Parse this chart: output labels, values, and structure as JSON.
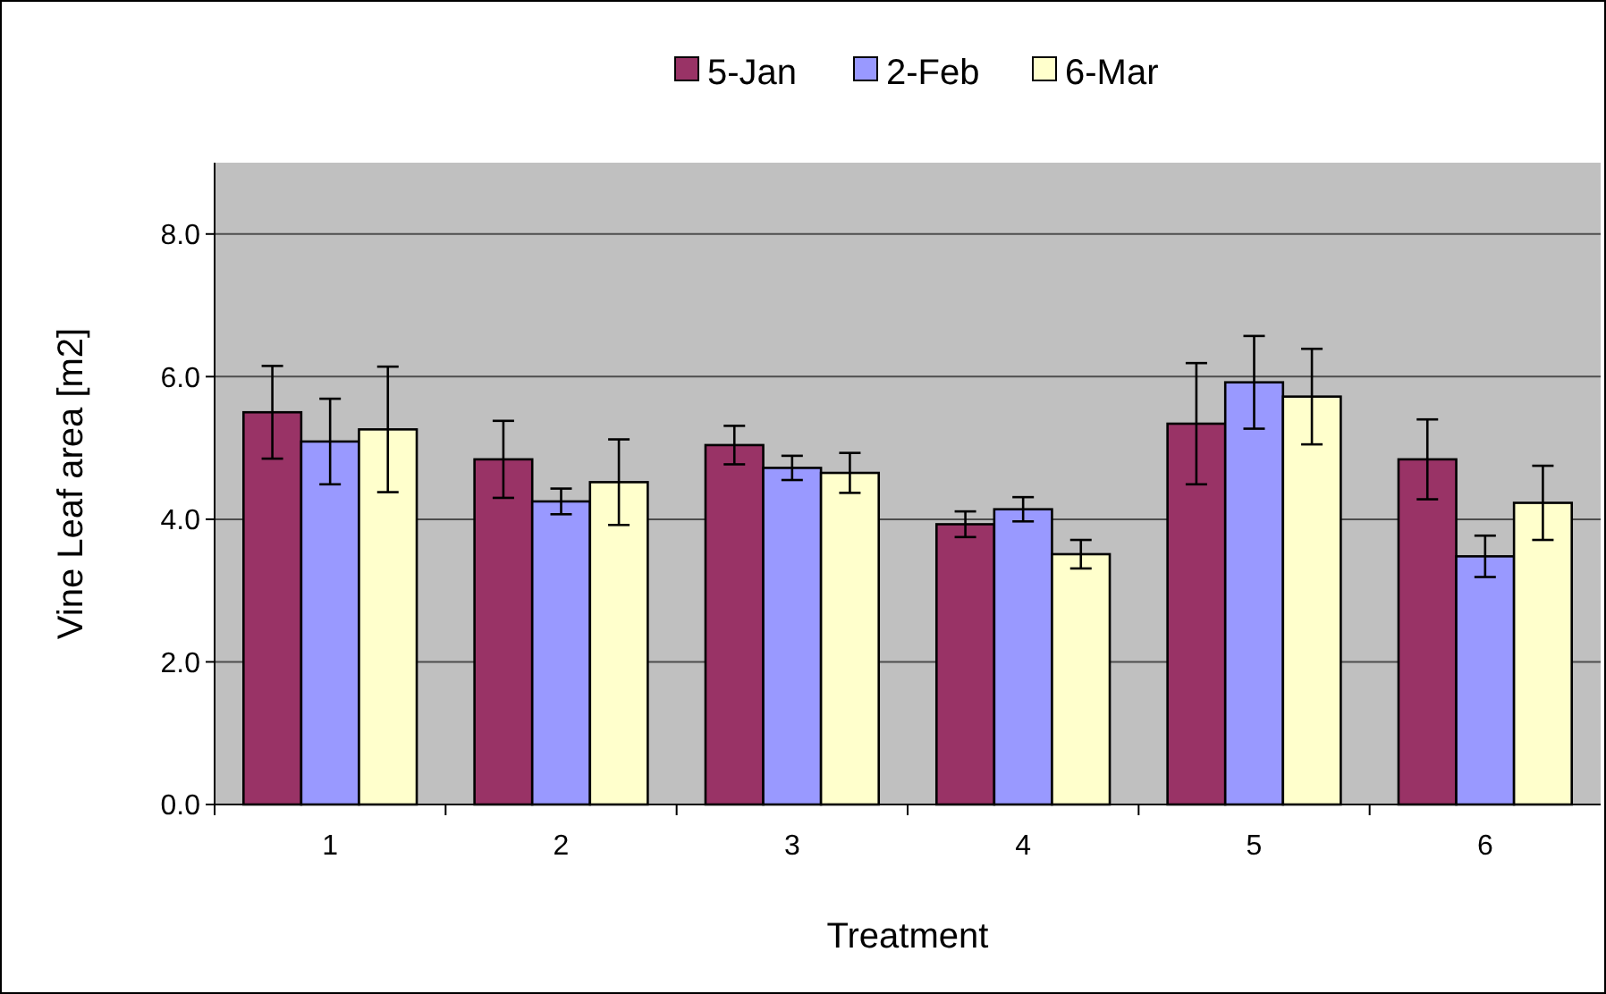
{
  "chart_data": {
    "type": "bar",
    "xlabel": "Treatment",
    "ylabel": "Vine Leaf area [m2]",
    "categories": [
      "1",
      "2",
      "3",
      "4",
      "5",
      "6"
    ],
    "series": [
      {
        "name": "5-Jan",
        "color": "#993366",
        "values": [
          5.5,
          4.84,
          5.04,
          3.93,
          5.34,
          4.84
        ],
        "errors": [
          0.65,
          0.54,
          0.27,
          0.18,
          0.85,
          0.56
        ]
      },
      {
        "name": "2-Feb",
        "color": "#9999ff",
        "values": [
          5.09,
          4.25,
          4.72,
          4.14,
          5.92,
          3.48
        ],
        "errors": [
          0.6,
          0.18,
          0.17,
          0.17,
          0.65,
          0.29
        ]
      },
      {
        "name": "6-Mar",
        "color": "#ffffcc",
        "values": [
          5.26,
          4.52,
          4.65,
          3.51,
          5.72,
          4.23
        ],
        "errors": [
          0.88,
          0.6,
          0.28,
          0.2,
          0.67,
          0.52
        ]
      }
    ],
    "ylim": [
      0,
      9
    ],
    "yticks": [
      {
        "value": 0,
        "label": "0.0"
      },
      {
        "value": 2,
        "label": "2.0"
      },
      {
        "value": 4,
        "label": "4.0"
      },
      {
        "value": 6,
        "label": "6.0"
      },
      {
        "value": 8,
        "label": "8.0"
      }
    ],
    "grid": "y",
    "legend": "top"
  }
}
